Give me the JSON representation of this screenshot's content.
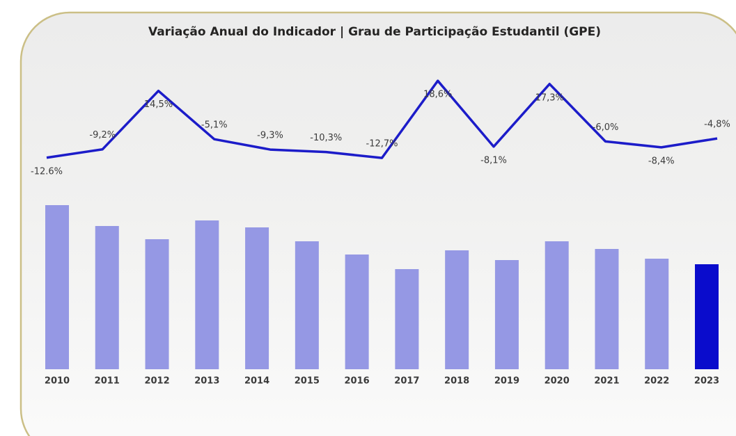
{
  "chart_data": {
    "type": "bar",
    "title": "Variação Anual do Indicador | Grau de Participação Estudantil (GPE)",
    "categories": [
      "2010",
      "2011",
      "2012",
      "2013",
      "2014",
      "2015",
      "2016",
      "2017",
      "2018",
      "2019",
      "2020",
      "2021",
      "2022",
      "2023"
    ],
    "ylim": [
      0,
      250
    ],
    "y2lim": [
      -20,
      25
    ],
    "series": [
      {
        "type": "bar",
        "colors": [
          "#9598e4",
          "#9598e4",
          "#9598e4",
          "#9598e4",
          "#9598e4",
          "#9598e4",
          "#9598e4",
          "#9598e4",
          "#9598e4",
          "#9598e4",
          "#9598e4",
          "#9598e4",
          "#9598e4",
          "#0a0ccc"
        ],
        "values": [
          236,
          206,
          187,
          214,
          204,
          184,
          165,
          144,
          171,
          157,
          184,
          173,
          159,
          151
        ]
      },
      {
        "type": "line",
        "axis": "y2",
        "color": "#1c1cc9",
        "values": [
          null,
          -12.6,
          -9.2,
          14.5,
          -5.1,
          -9.3,
          -10.3,
          -12.7,
          18.6,
          -8.1,
          17.3,
          -6.0,
          -8.4,
          -4.8
        ],
        "value_labels": [
          null,
          "-12.6%",
          "-9,2%",
          "14,5%",
          "-5,1%",
          "-9,3%",
          "-10,3%",
          "-12,7%",
          "18,6%",
          "-8,1%",
          "17,3%",
          "-6,0%",
          "-8,4%",
          "-4,8%"
        ]
      }
    ]
  }
}
